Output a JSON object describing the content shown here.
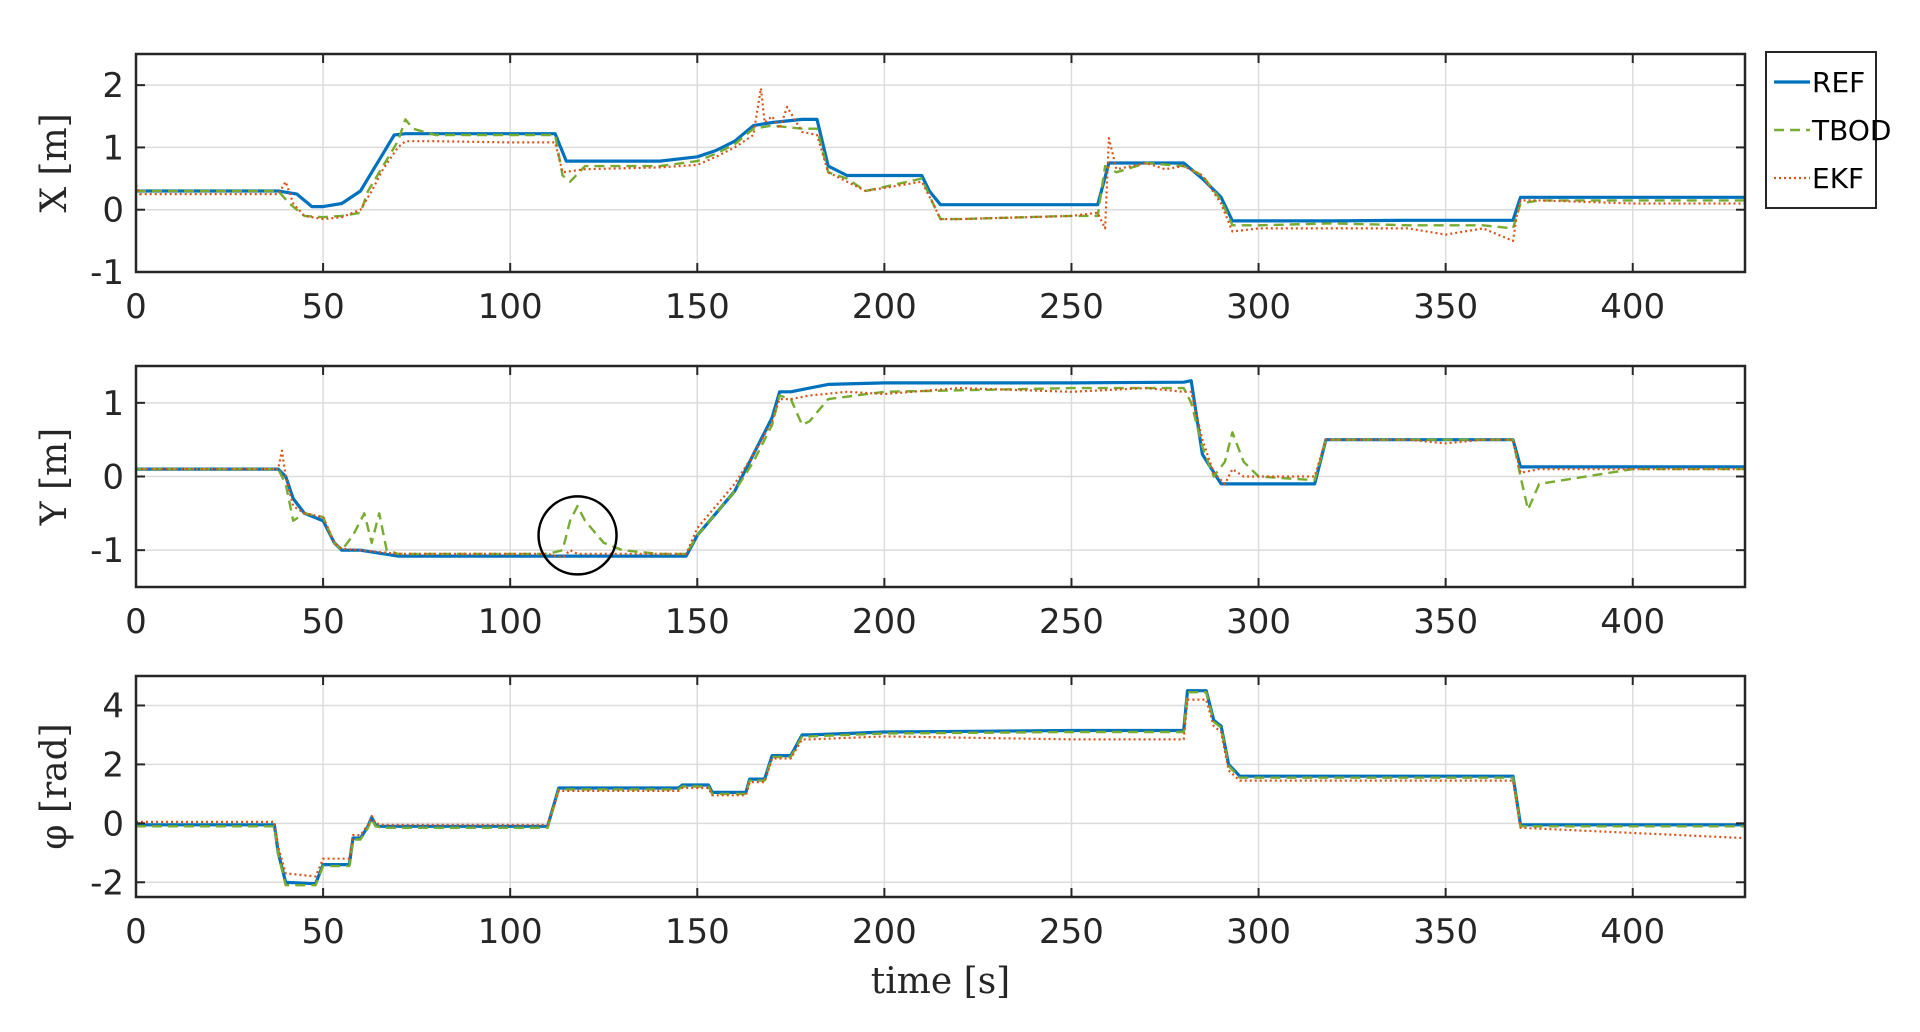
{
  "chart_data": [
    {
      "type": "line",
      "ylabel": "X [m]",
      "xlabel": "",
      "xlim": [
        0,
        430
      ],
      "ylim": [
        -1,
        2.5
      ],
      "xticks": [
        0,
        50,
        100,
        150,
        200,
        250,
        300,
        350,
        400
      ],
      "yticks": [
        -1,
        0,
        1,
        2
      ],
      "grid": true,
      "legend": {
        "placement": "outside-top-right",
        "entries": [
          "REF",
          "TBOD",
          "EKF"
        ]
      },
      "series": [
        {
          "name": "REF",
          "color": "#0072BD",
          "style": "solid",
          "x": [
            0,
            38,
            43,
            47,
            50,
            55,
            60,
            63,
            66,
            69,
            72,
            80,
            90,
            100,
            108,
            112,
            115,
            120,
            140,
            150,
            155,
            160,
            163,
            165,
            170,
            178,
            182,
            185,
            190,
            200,
            210,
            212,
            215,
            230,
            250,
            257,
            260,
            270,
            280,
            285,
            290,
            293,
            300,
            320,
            340,
            360,
            368,
            370,
            375,
            400,
            430
          ],
          "y": [
            0.3,
            0.3,
            0.25,
            0.05,
            0.05,
            0.1,
            0.3,
            0.6,
            0.9,
            1.2,
            1.22,
            1.22,
            1.22,
            1.22,
            1.22,
            1.22,
            0.78,
            0.78,
            0.78,
            0.85,
            0.95,
            1.1,
            1.25,
            1.35,
            1.4,
            1.45,
            1.45,
            0.7,
            0.55,
            0.55,
            0.55,
            0.3,
            0.08,
            0.08,
            0.08,
            0.08,
            0.75,
            0.75,
            0.75,
            0.5,
            0.2,
            -0.18,
            -0.18,
            -0.18,
            -0.17,
            -0.17,
            -0.17,
            0.2,
            0.2,
            0.2,
            0.2
          ]
        },
        {
          "name": "TBOD",
          "color": "#77AC30",
          "style": "dashed",
          "x": [
            0,
            38,
            41,
            45,
            50,
            55,
            60,
            62,
            66,
            70,
            72,
            74,
            80,
            100,
            112,
            114,
            116,
            120,
            140,
            150,
            155,
            160,
            165,
            170,
            178,
            182,
            185,
            190,
            195,
            210,
            213,
            215,
            220,
            250,
            257,
            259,
            262,
            270,
            280,
            285,
            290,
            293,
            300,
            320,
            340,
            360,
            368,
            370,
            375,
            400,
            430
          ],
          "y": [
            0.3,
            0.3,
            0.1,
            -0.1,
            -0.12,
            -0.1,
            -0.05,
            0.3,
            0.7,
            1.1,
            1.45,
            1.3,
            1.2,
            1.2,
            1.2,
            0.55,
            0.45,
            0.7,
            0.7,
            0.78,
            0.9,
            1.05,
            1.3,
            1.35,
            1.3,
            1.3,
            0.6,
            0.5,
            0.3,
            0.5,
            0.1,
            -0.15,
            -0.15,
            -0.1,
            -0.1,
            0.7,
            0.6,
            0.75,
            0.7,
            0.55,
            0.15,
            -0.25,
            -0.25,
            -0.22,
            -0.25,
            -0.25,
            -0.3,
            0.1,
            0.15,
            0.15,
            0.15
          ]
        },
        {
          "name": "EKF",
          "color": "#D95319",
          "style": "dotted",
          "x": [
            0,
            1,
            2,
            38,
            40,
            42,
            45,
            50,
            55,
            60,
            63,
            66,
            70,
            72,
            80,
            100,
            112,
            114,
            120,
            140,
            150,
            155,
            160,
            165,
            167,
            168,
            170,
            172,
            174,
            178,
            182,
            185,
            190,
            195,
            210,
            213,
            215,
            220,
            250,
            257,
            259,
            260,
            262,
            270,
            275,
            280,
            285,
            290,
            293,
            300,
            320,
            340,
            350,
            360,
            368,
            369,
            370,
            375,
            400,
            430
          ],
          "y": [
            0.4,
            0.25,
            0.25,
            0.25,
            0.45,
            0.1,
            -0.1,
            -0.15,
            -0.12,
            0.0,
            0.3,
            0.65,
            1.0,
            1.1,
            1.1,
            1.08,
            1.08,
            0.6,
            0.65,
            0.68,
            0.72,
            0.85,
            1.0,
            1.2,
            1.95,
            1.4,
            1.5,
            1.3,
            1.65,
            1.25,
            1.2,
            0.6,
            0.45,
            0.3,
            0.45,
            0.1,
            -0.15,
            -0.15,
            -0.1,
            -0.05,
            -0.3,
            1.15,
            0.65,
            0.75,
            0.65,
            0.7,
            0.55,
            0.1,
            -0.35,
            -0.3,
            -0.3,
            -0.3,
            -0.4,
            -0.3,
            -0.5,
            -0.1,
            0.15,
            0.15,
            0.1,
            0.1
          ]
        }
      ]
    },
    {
      "type": "line",
      "ylabel": "Y [m]",
      "xlabel": "",
      "xlim": [
        0,
        430
      ],
      "ylim": [
        -1.5,
        1.5
      ],
      "xticks": [
        0,
        50,
        100,
        150,
        200,
        250,
        300,
        350,
        400
      ],
      "yticks": [
        -1,
        0,
        1
      ],
      "grid": true,
      "annotation": {
        "type": "circle",
        "x": 118,
        "y": -0.8
      },
      "series": [
        {
          "name": "REF",
          "color": "#0072BD",
          "style": "solid",
          "x": [
            0,
            38,
            40,
            42,
            45,
            50,
            53,
            55,
            60,
            70,
            72,
            80,
            100,
            120,
            140,
            145,
            147,
            150,
            155,
            160,
            165,
            170,
            172,
            175,
            180,
            185,
            200,
            250,
            280,
            282,
            285,
            290,
            293,
            300,
            315,
            318,
            320,
            330,
            350,
            368,
            370,
            375,
            400,
            430
          ],
          "y": [
            0.1,
            0.1,
            0.0,
            -0.3,
            -0.5,
            -0.6,
            -0.9,
            -1.0,
            -1.0,
            -1.08,
            -1.08,
            -1.08,
            -1.08,
            -1.08,
            -1.08,
            -1.08,
            -1.08,
            -0.8,
            -0.5,
            -0.2,
            0.3,
            0.8,
            1.15,
            1.15,
            1.2,
            1.25,
            1.27,
            1.27,
            1.28,
            1.3,
            0.3,
            -0.1,
            -0.1,
            -0.1,
            -0.1,
            0.5,
            0.5,
            0.5,
            0.5,
            0.5,
            0.13,
            0.13,
            0.13,
            0.13
          ]
        },
        {
          "name": "TBOD",
          "color": "#77AC30",
          "style": "dashed",
          "x": [
            0,
            38,
            40,
            42,
            45,
            50,
            53,
            55,
            58,
            61,
            63,
            65,
            67,
            70,
            80,
            100,
            110,
            114,
            116,
            118,
            120,
            125,
            130,
            140,
            147,
            150,
            155,
            160,
            165,
            170,
            172,
            175,
            178,
            180,
            185,
            200,
            250,
            280,
            282,
            285,
            288,
            291,
            293,
            296,
            300,
            315,
            318,
            320,
            350,
            368,
            370,
            372,
            375,
            400,
            430
          ],
          "y": [
            0.1,
            0.1,
            -0.1,
            -0.6,
            -0.5,
            -0.55,
            -0.9,
            -1.0,
            -0.8,
            -0.5,
            -0.9,
            -0.5,
            -1.0,
            -1.05,
            -1.05,
            -1.05,
            -1.05,
            -1.0,
            -0.6,
            -0.4,
            -0.6,
            -0.9,
            -1.0,
            -1.05,
            -1.05,
            -0.8,
            -0.5,
            -0.2,
            0.2,
            0.7,
            1.1,
            1.05,
            0.7,
            0.75,
            1.05,
            1.15,
            1.2,
            1.2,
            1.0,
            0.4,
            0.0,
            0.2,
            0.6,
            0.2,
            0.0,
            -0.05,
            0.5,
            0.5,
            0.5,
            0.5,
            0.0,
            -0.45,
            -0.1,
            0.1,
            0.1
          ]
        },
        {
          "name": "EKF",
          "color": "#D95319",
          "style": "dotted",
          "x": [
            0,
            38,
            39,
            40,
            42,
            45,
            50,
            53,
            55,
            60,
            70,
            80,
            100,
            110,
            114,
            116,
            118,
            120,
            130,
            140,
            147,
            150,
            155,
            160,
            165,
            170,
            172,
            175,
            180,
            190,
            200,
            220,
            250,
            270,
            280,
            282,
            285,
            288,
            291,
            293,
            296,
            300,
            315,
            318,
            320,
            340,
            350,
            360,
            368,
            370,
            375,
            400,
            430
          ],
          "y": [
            0.1,
            0.1,
            0.35,
            0.0,
            -0.4,
            -0.5,
            -0.55,
            -0.9,
            -0.98,
            -1.0,
            -1.05,
            -1.05,
            -1.05,
            -1.05,
            -1.1,
            -1.0,
            -1.05,
            -1.05,
            -1.05,
            -1.05,
            -1.05,
            -0.7,
            -0.4,
            -0.1,
            0.3,
            0.75,
            1.05,
            1.05,
            1.1,
            1.15,
            1.12,
            1.2,
            1.15,
            1.2,
            1.15,
            1.15,
            0.5,
            0.05,
            -0.1,
            0.1,
            0.0,
            0.0,
            0.0,
            0.5,
            0.5,
            0.5,
            0.45,
            0.5,
            0.5,
            0.05,
            0.1,
            0.1,
            0.1
          ]
        }
      ]
    },
    {
      "type": "line",
      "ylabel": "φ [rad]",
      "xlabel": "time [s]",
      "xlim": [
        0,
        430
      ],
      "ylim": [
        -2.5,
        5
      ],
      "xticks": [
        0,
        50,
        100,
        150,
        200,
        250,
        300,
        350,
        400
      ],
      "yticks": [
        -2,
        0,
        2,
        4
      ],
      "grid": true,
      "series": [
        {
          "name": "REF",
          "color": "#0072BD",
          "style": "solid",
          "x": [
            0,
            37,
            38,
            40,
            48,
            50,
            57,
            58,
            60,
            62,
            63,
            64,
            65,
            66,
            110,
            113,
            114,
            145,
            146,
            153,
            154,
            163,
            164,
            168,
            170,
            175,
            178,
            180,
            190,
            200,
            250,
            280,
            281,
            286,
            288,
            290,
            292,
            295,
            366,
            368,
            370,
            430
          ],
          "y": [
            -0.05,
            -0.05,
            -1.0,
            -2.0,
            -2.05,
            -1.4,
            -1.4,
            -0.5,
            -0.5,
            -0.1,
            0.2,
            -0.05,
            -0.1,
            -0.1,
            -0.1,
            1.2,
            1.2,
            1.2,
            1.3,
            1.3,
            1.05,
            1.05,
            1.5,
            1.5,
            2.3,
            2.3,
            3.0,
            3.0,
            3.05,
            3.1,
            3.15,
            3.15,
            4.5,
            4.5,
            3.5,
            3.3,
            2.0,
            1.6,
            1.6,
            1.6,
            -0.05,
            -0.05
          ]
        },
        {
          "name": "TBOD",
          "color": "#77AC30",
          "style": "dashed",
          "x": [
            0,
            37,
            38,
            40,
            48,
            50,
            57,
            58,
            60,
            62,
            63,
            64,
            66,
            110,
            113,
            114,
            145,
            146,
            153,
            154,
            163,
            164,
            168,
            170,
            175,
            178,
            180,
            190,
            200,
            250,
            280,
            281,
            286,
            288,
            290,
            292,
            295,
            366,
            368,
            370,
            430
          ],
          "y": [
            -0.1,
            -0.1,
            -1.05,
            -2.1,
            -2.1,
            -1.45,
            -1.45,
            -0.55,
            -0.55,
            -0.15,
            0.15,
            -0.1,
            -0.15,
            -0.15,
            1.15,
            1.15,
            1.15,
            1.25,
            1.25,
            1.0,
            1.0,
            1.45,
            1.45,
            2.25,
            2.25,
            2.95,
            2.95,
            3.0,
            3.05,
            3.1,
            3.1,
            4.45,
            4.45,
            3.45,
            3.25,
            1.95,
            1.55,
            1.55,
            1.55,
            -0.1,
            -0.1
          ]
        },
        {
          "name": "EKF",
          "color": "#D95319",
          "style": "dotted",
          "x": [
            0,
            37,
            38,
            40,
            48,
            50,
            57,
            58,
            60,
            62,
            63,
            64,
            66,
            110,
            113,
            114,
            145,
            146,
            153,
            154,
            163,
            164,
            168,
            170,
            175,
            178,
            180,
            190,
            200,
            250,
            280,
            281,
            286,
            288,
            290,
            292,
            295,
            366,
            368,
            370,
            430
          ],
          "y": [
            0.05,
            0.05,
            -0.8,
            -1.7,
            -1.8,
            -1.2,
            -1.2,
            -0.4,
            -0.4,
            -0.05,
            0.25,
            0.0,
            -0.05,
            -0.05,
            1.1,
            1.1,
            1.1,
            1.2,
            1.2,
            0.95,
            0.95,
            1.4,
            1.4,
            2.2,
            2.2,
            2.85,
            2.85,
            2.9,
            2.95,
            2.85,
            2.85,
            4.2,
            4.2,
            3.3,
            3.1,
            1.8,
            1.45,
            1.45,
            1.45,
            -0.15,
            -0.5
          ]
        }
      ]
    }
  ]
}
